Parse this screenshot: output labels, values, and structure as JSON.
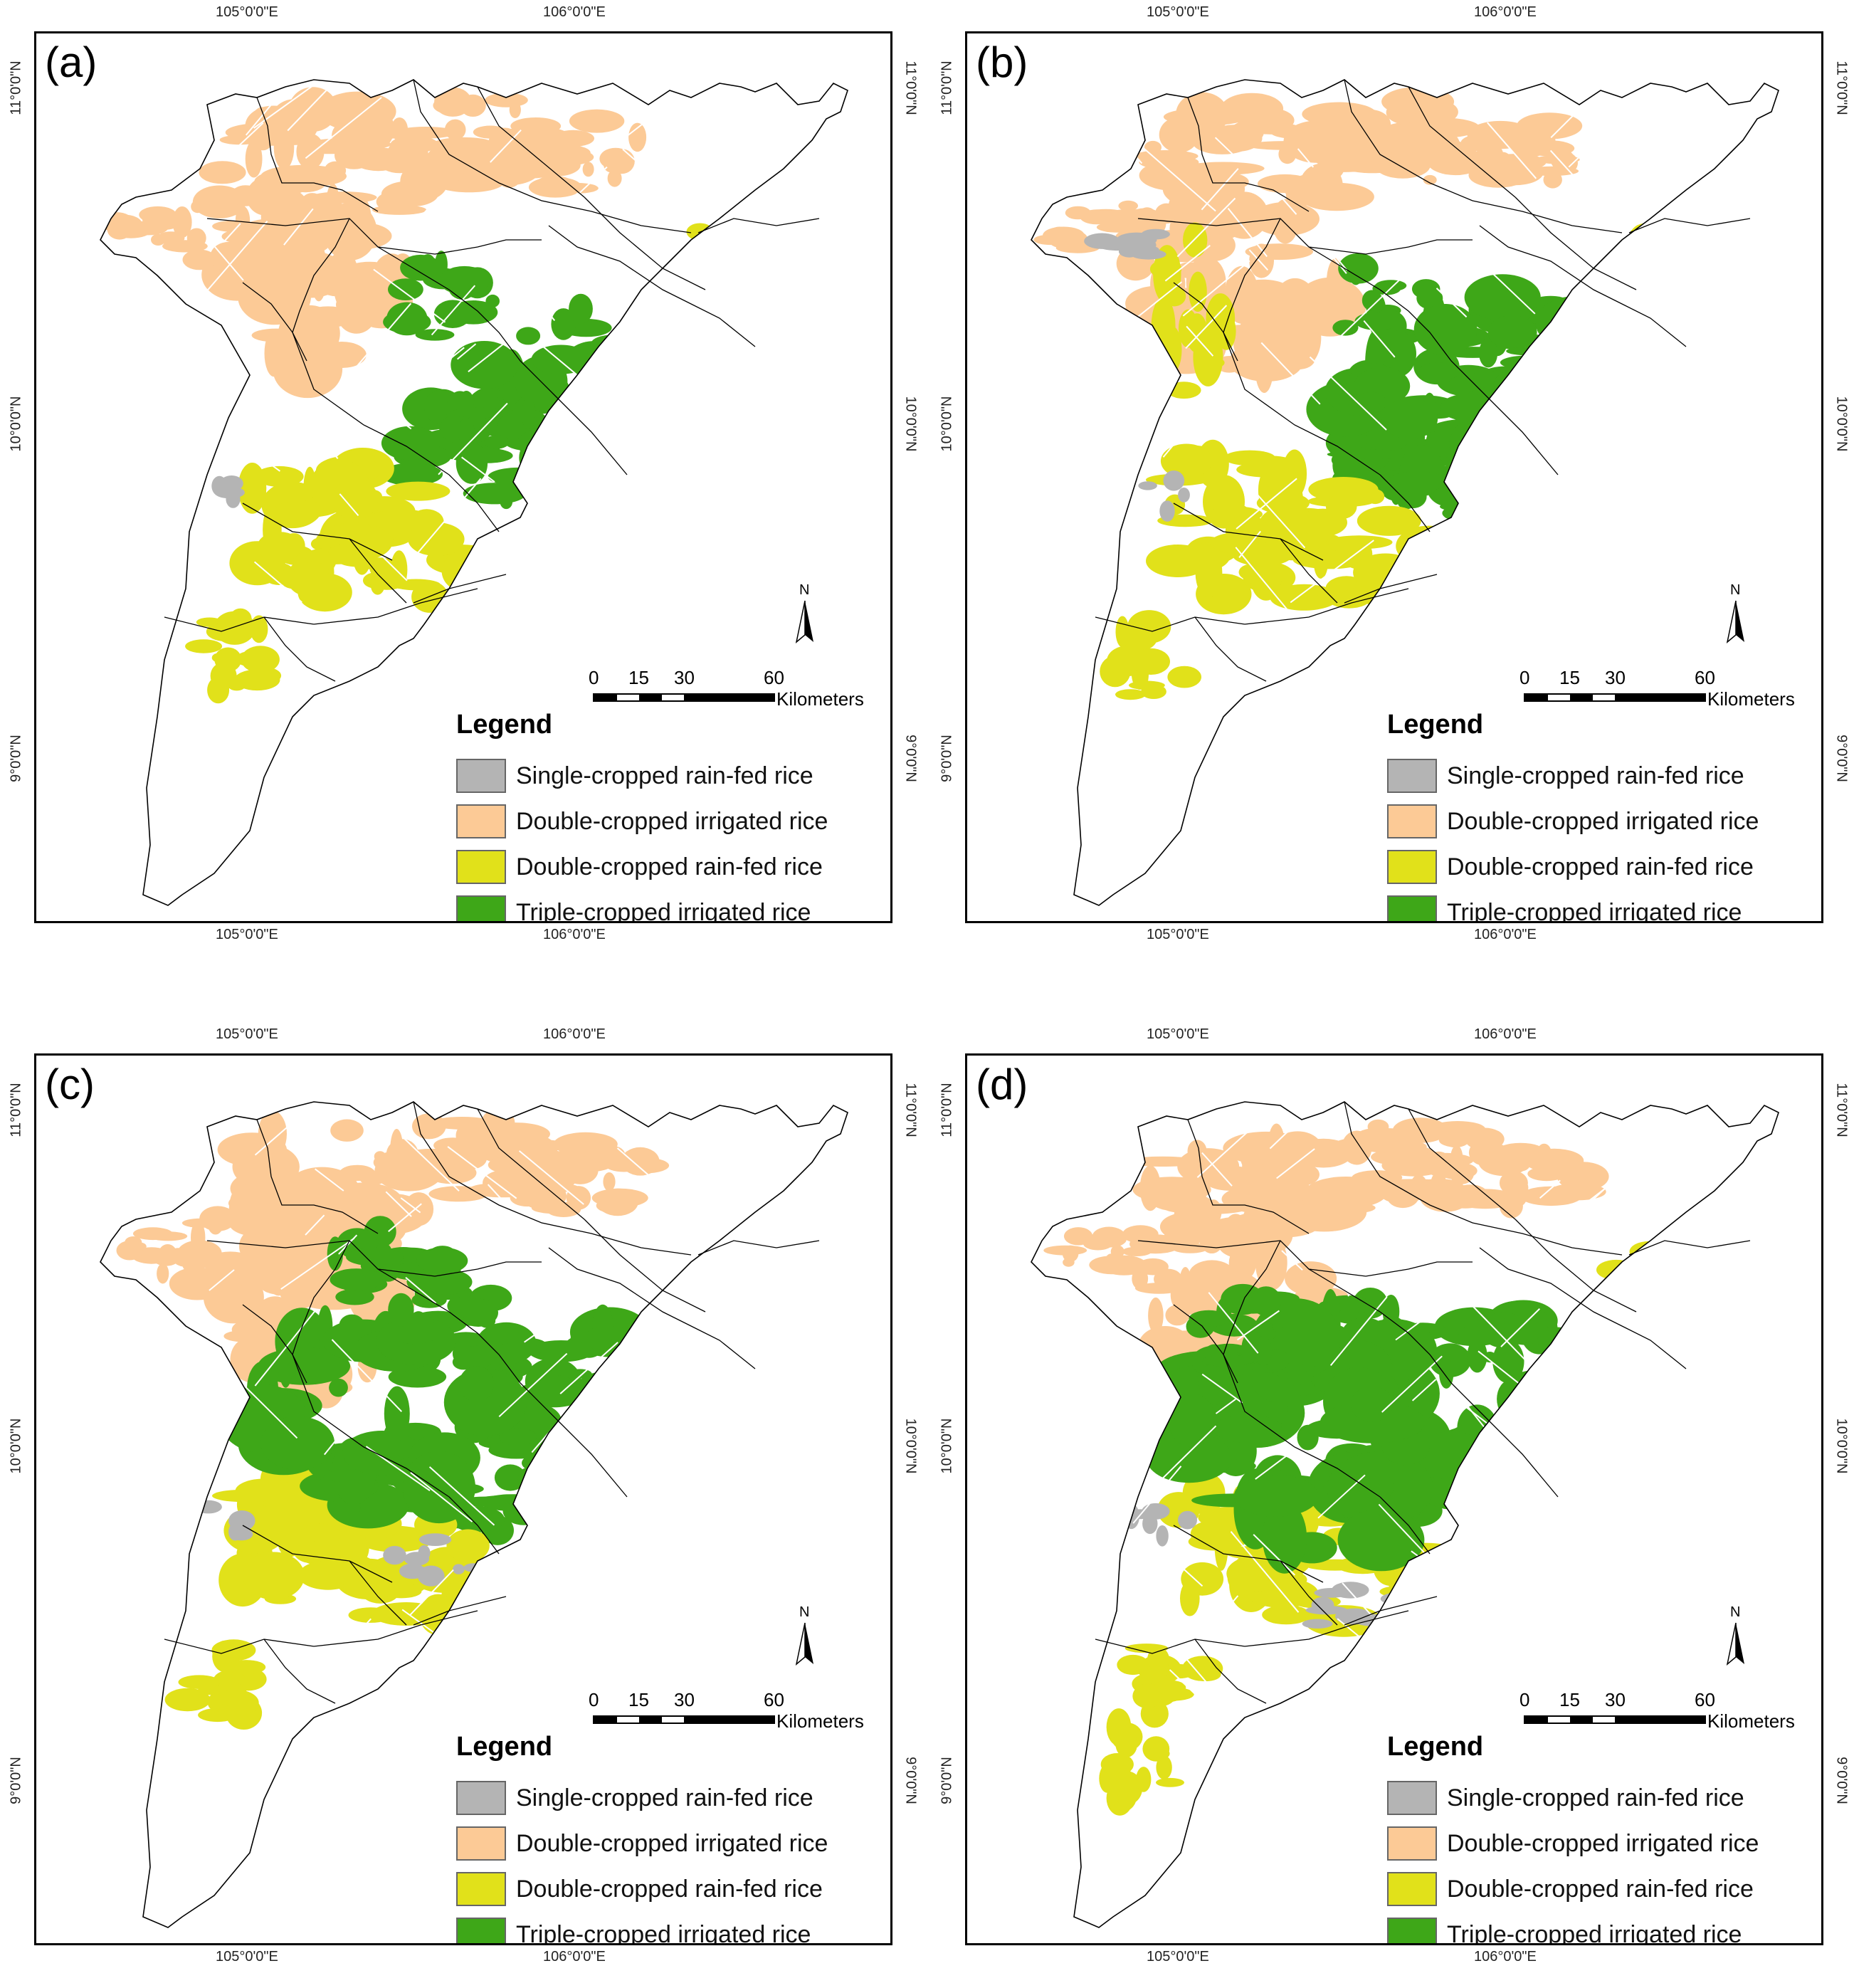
{
  "panels": [
    {
      "id": "a",
      "label": "(a)"
    },
    {
      "id": "b",
      "label": "(b)"
    },
    {
      "id": "c",
      "label": "(c)"
    },
    {
      "id": "d",
      "label": "(d)"
    }
  ],
  "coordinates": {
    "lon_1": "105°0'0\"E",
    "lon_2": "106°0'0\"E",
    "lat_1": "11°0'0\"N",
    "lat_2": "10°0'0\"N",
    "lat_3": "9°0'0\"N"
  },
  "north_arrow": {
    "letter": "N"
  },
  "scale_bar": {
    "ticks": [
      "0",
      "15",
      "30",
      "60"
    ],
    "unit": "Kilometers"
  },
  "legend": {
    "title": "Legend",
    "items": [
      {
        "label": "Single-cropped rain-fed rice",
        "color": "#b4b4b4"
      },
      {
        "label": "Double-cropped irrigated rice",
        "color": "#fcca96"
      },
      {
        "label": "Double-cropped rain-fed rice",
        "color": "#e1e11a"
      },
      {
        "label": "Triple-cropped irrigated rice",
        "color": "#3ea718"
      }
    ]
  },
  "colors": {
    "boundary": "#000000",
    "background": "#ffffff",
    "road": "#ffffff"
  }
}
